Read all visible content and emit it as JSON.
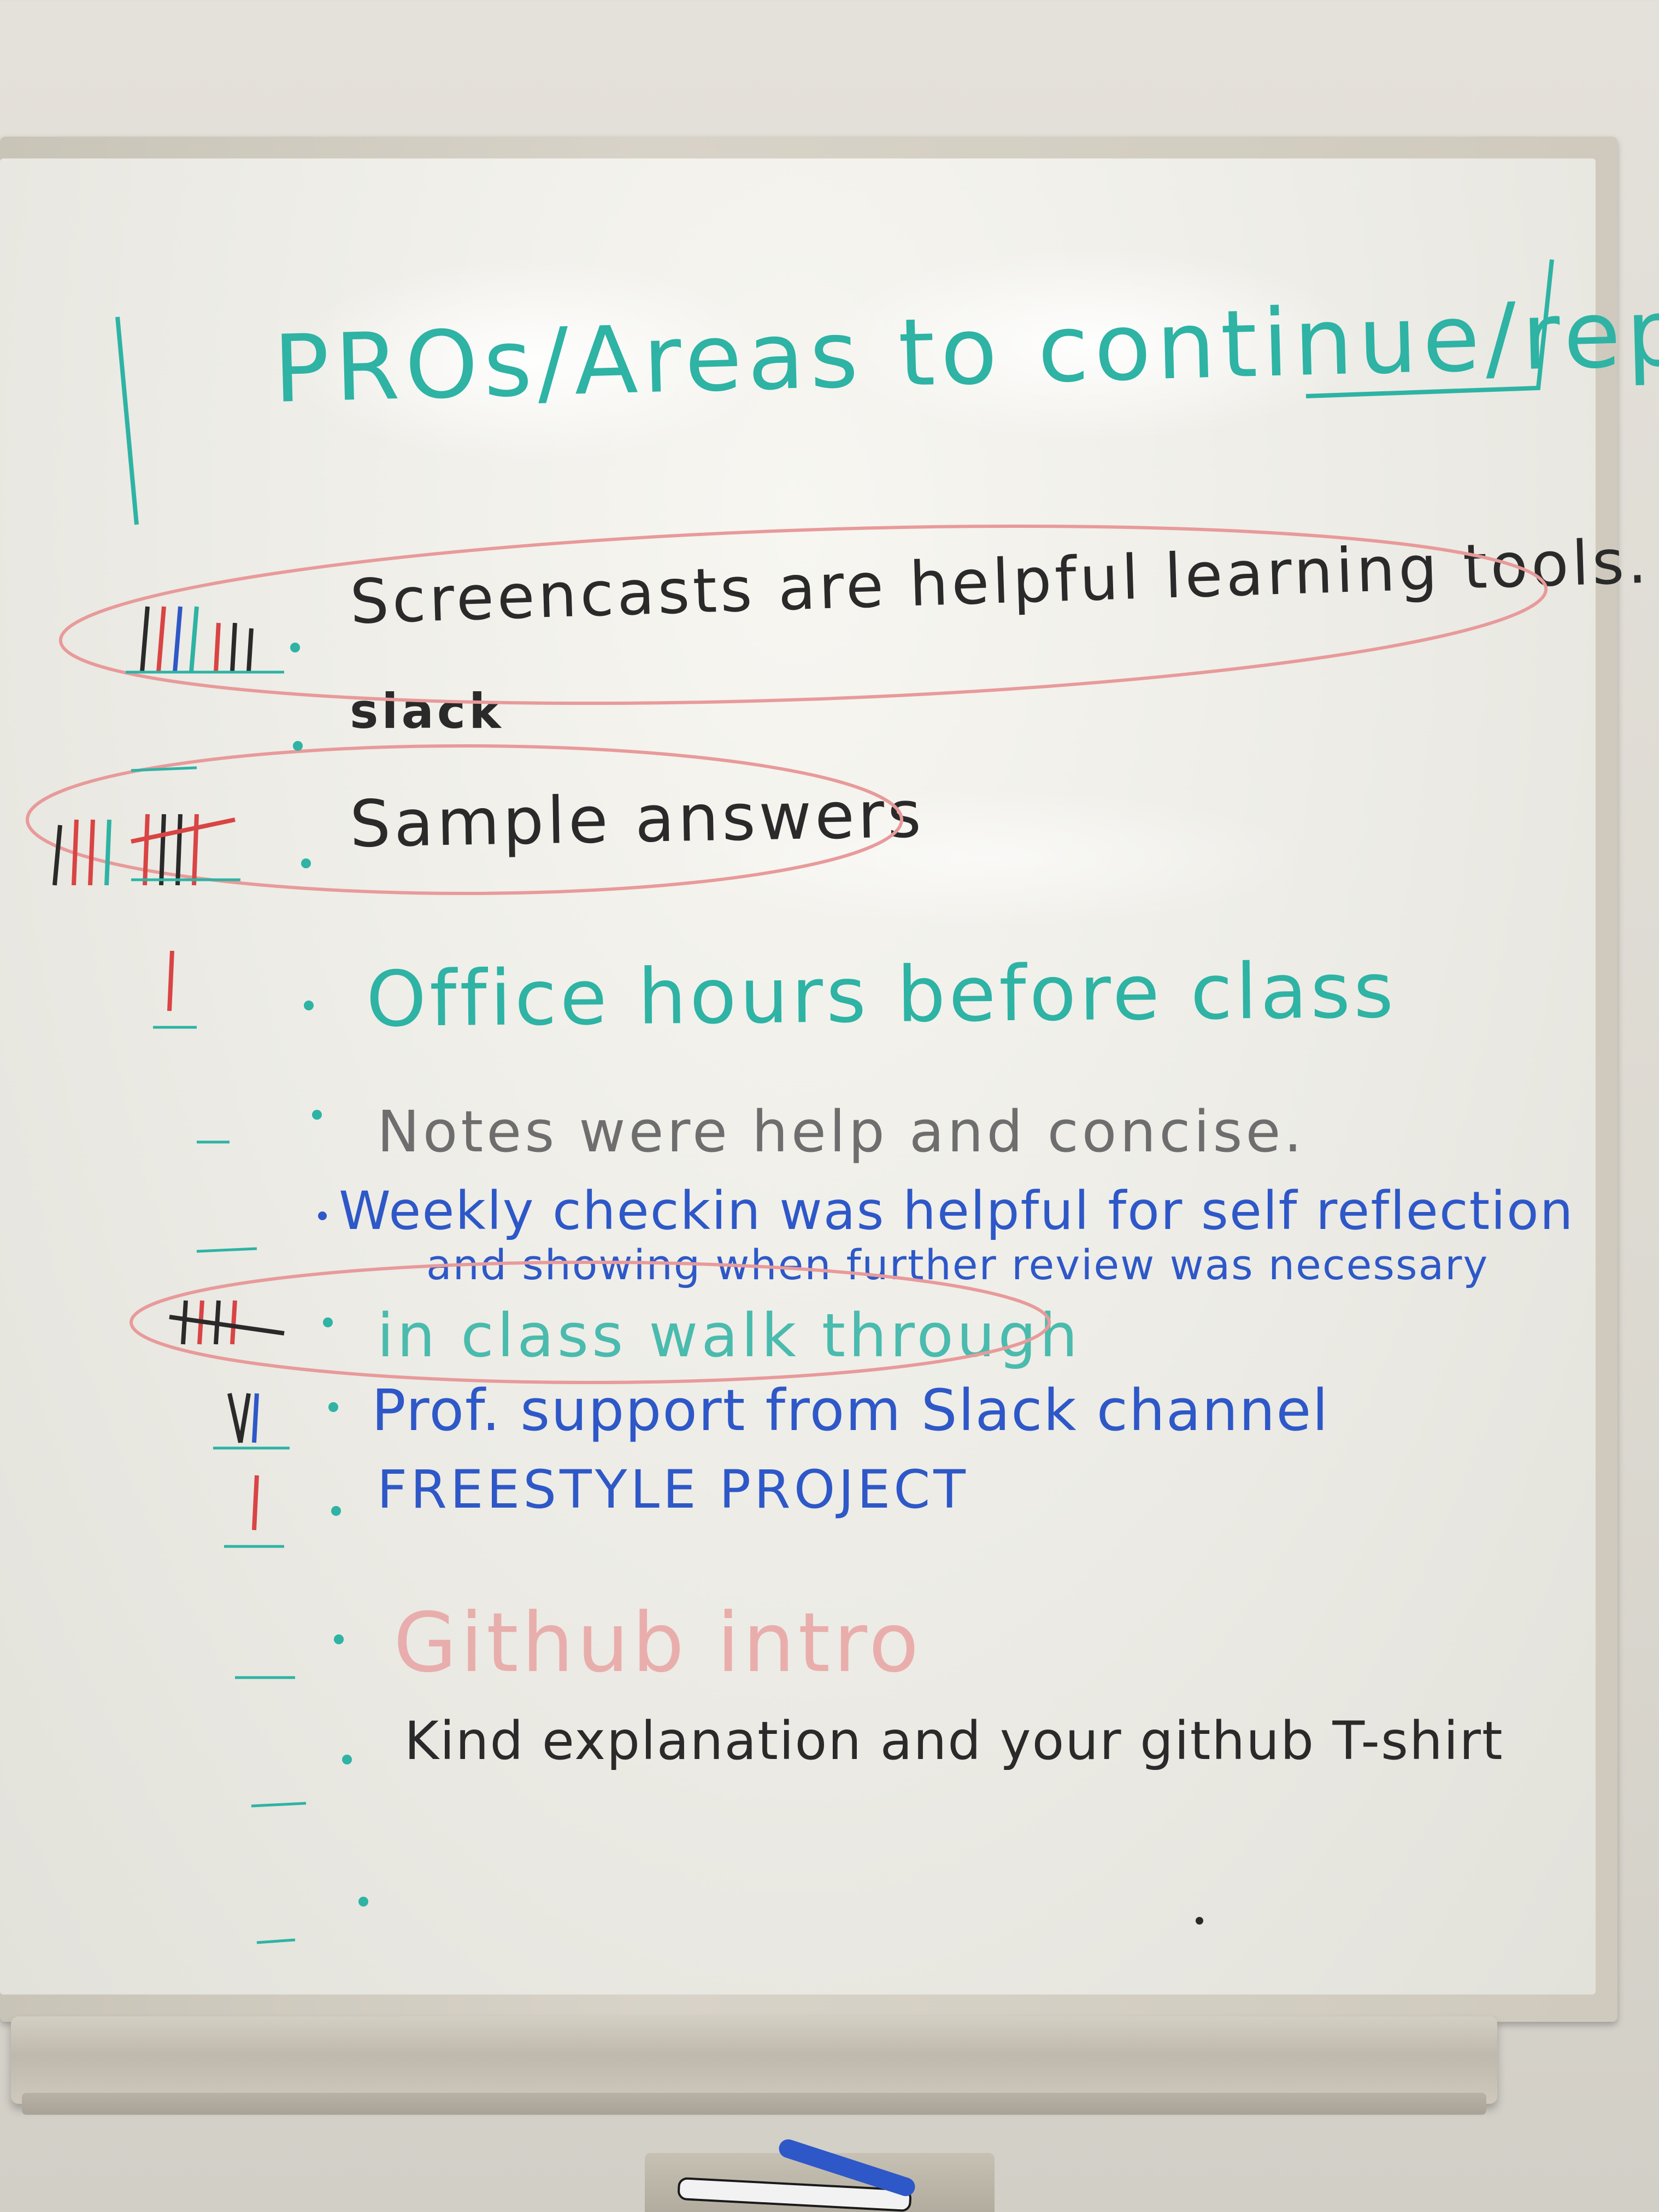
{
  "board": {
    "title": "PROs/Areas to continue/repeat",
    "items": [
      {
        "text": "Screencasts are helpful learning tools."
      },
      {
        "text": "slack"
      },
      {
        "text": "Sample answers"
      },
      {
        "text": "Office hours before class"
      },
      {
        "text": "Notes were help and concise."
      },
      {
        "text": "Weekly checkin was helpful for self reflection"
      },
      {
        "text": "and showing when further review was necessary"
      },
      {
        "text": "in class walk through"
      },
      {
        "text": "Prof. support from Slack channel"
      },
      {
        "text": "FREESTYLE PROJECT"
      },
      {
        "text": "Github intro"
      },
      {
        "text": "Kind explanation and your github T-shirt"
      }
    ]
  },
  "colors": {
    "teal": "#2eb3a4",
    "black": "#2a2a2a",
    "blue": "#2e58c8",
    "pink": "#e89a9a",
    "red": "#d94444"
  }
}
